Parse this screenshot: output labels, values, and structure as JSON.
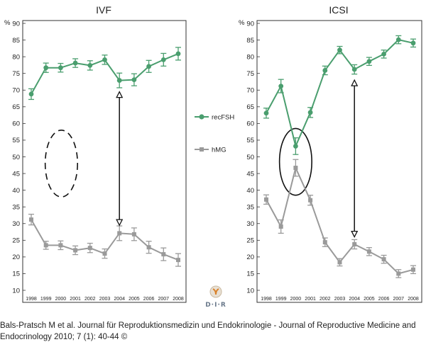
{
  "chart_data": [
    {
      "type": "line",
      "title": "IVF",
      "yunit": "%",
      "ylim": [
        10,
        90
      ],
      "yticks": [
        10,
        15,
        20,
        25,
        30,
        35,
        40,
        45,
        50,
        55,
        60,
        65,
        70,
        75,
        80,
        85,
        90
      ],
      "x": [
        1998,
        1999,
        2000,
        2001,
        2002,
        2003,
        2004,
        2005,
        2006,
        2007,
        2008
      ],
      "grid": false,
      "series": [
        {
          "name": "recFSH",
          "color": "#4a9e6e",
          "values": [
            68.8,
            76.7,
            76.7,
            78.1,
            77.4,
            79.1,
            72.9,
            73.1,
            77.1,
            79.1,
            80.9
          ],
          "errors": [
            1.6,
            1.4,
            1.3,
            1.3,
            1.4,
            1.4,
            2.2,
            1.8,
            1.8,
            1.9,
            1.9
          ]
        },
        {
          "name": "hMG",
          "color": "#9a9a9a",
          "values": [
            31.2,
            23.5,
            23.5,
            22.0,
            22.7,
            21.0,
            27.1,
            26.8,
            22.9,
            20.8,
            19.1
          ],
          "errors": [
            1.6,
            1.2,
            1.3,
            1.3,
            1.4,
            1.4,
            2.2,
            1.9,
            1.8,
            1.9,
            1.9
          ]
        }
      ],
      "annotations": [
        {
          "type": "ellipse",
          "style": "dashed",
          "x": 2000.05,
          "y": 48,
          "rx": 1.1,
          "ry": 10
        },
        {
          "type": "double-arrow",
          "x": 2004,
          "y_from": 69.5,
          "y_to": 29.5
        }
      ]
    },
    {
      "type": "line",
      "title": "ICSI",
      "yunit": "%",
      "ylim": [
        10,
        90
      ],
      "yticks": [
        10,
        15,
        20,
        25,
        30,
        35,
        40,
        45,
        50,
        55,
        60,
        65,
        70,
        75,
        80,
        85,
        90
      ],
      "x": [
        1998,
        1999,
        2000,
        2001,
        2002,
        2003,
        2004,
        2005,
        2006,
        2007,
        2008
      ],
      "grid": false,
      "series": [
        {
          "name": "recFSH",
          "color": "#4a9e6e",
          "values": [
            63.1,
            71.2,
            53.2,
            63.3,
            75.9,
            82.0,
            76.2,
            78.6,
            80.8,
            85.1,
            84.1
          ],
          "errors": [
            1.5,
            2.0,
            2.5,
            1.5,
            1.3,
            1.1,
            1.4,
            1.2,
            1.2,
            1.2,
            1.2
          ]
        },
        {
          "name": "hMG",
          "color": "#9a9a9a",
          "values": [
            37.2,
            29.1,
            46.7,
            37.0,
            24.4,
            18.4,
            23.8,
            21.6,
            19.3,
            15.0,
            16.2
          ],
          "errors": [
            1.4,
            2.0,
            2.5,
            1.5,
            1.3,
            1.1,
            1.4,
            1.2,
            1.2,
            1.2,
            1.2
          ]
        }
      ],
      "annotations": [
        {
          "type": "ellipse",
          "style": "solid",
          "x": 2000,
          "y": 48.5,
          "rx": 1.1,
          "ry": 10
        },
        {
          "type": "double-arrow",
          "x": 2004,
          "y_from": 73,
          "y_to": 26
        }
      ]
    }
  ],
  "legend": {
    "items": [
      {
        "label": "recFSH",
        "color": "#4a9e6e",
        "marker": "circle"
      },
      {
        "label": "hMG",
        "color": "#9a9a9a",
        "marker": "square"
      }
    ]
  },
  "logo": {
    "text": "D·I·R",
    "subtext": ""
  },
  "caption": "Bals-Pratsch M et al. Journal für Reproduktionsmedizin und Endokrinologie - Journal of Reproductive Medicine and Endocrinology 2010; 7 (1): 40-44 ©"
}
